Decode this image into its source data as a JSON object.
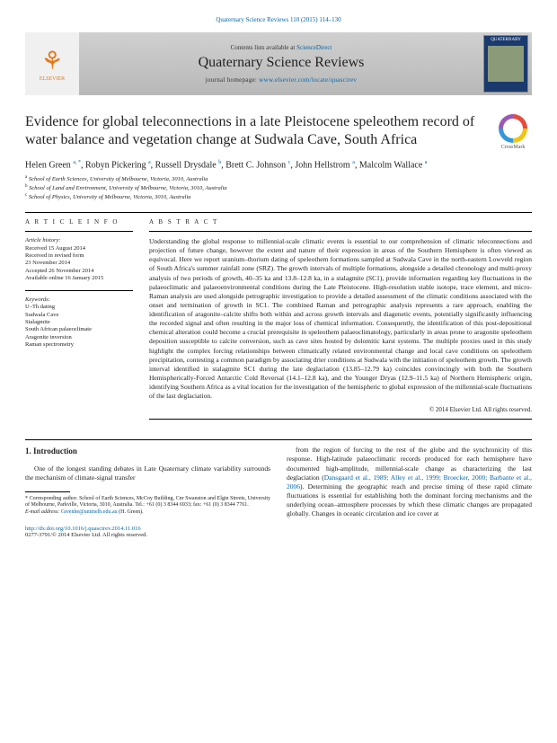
{
  "top_citation": "Quaternary Science Reviews 110 (2015) 114–130",
  "header": {
    "contents_line_prefix": "Contents lists available at ",
    "contents_link": "ScienceDirect",
    "journal_name": "Quaternary Science Reviews",
    "homepage_prefix": "journal homepage: ",
    "homepage_link": "www.elsevier.com/locate/quascirev",
    "publisher_logo": "ELSEVIER",
    "cover_title": "QUATERNARY"
  },
  "article": {
    "title": "Evidence for global teleconnections in a late Pleistocene speleothem record of water balance and vegetation change at Sudwala Cave, South Africa",
    "crossmark_label": "CrossMark"
  },
  "authors_html": "Helen Green <sup>a, *</sup>, Robyn Pickering <sup>a</sup>, Russell Drysdale <sup>b</sup>, Brett C. Johnson <sup>c</sup>, John Hellstrom <sup>a</sup>, Malcolm Wallace <sup>a</sup>",
  "affiliations": [
    "a School of Earth Sciences, University of Melbourne, Victoria, 3010, Australia",
    "b School of Land and Environment, University of Melbourne, Victoria, 3010, Australia",
    "c School of Physics, University of Melbourne, Victoria, 3010, Australia"
  ],
  "article_info": {
    "heading": "A R T I C L E   I N F O",
    "history_label": "Article history:",
    "history": [
      "Received 15 August 2014",
      "Received in revised form",
      "23 November 2014",
      "Accepted 26 November 2014",
      "Available online 16 January 2015"
    ],
    "keywords_label": "Keywords:",
    "keywords": [
      "U–Th dating",
      "Sudwala Cave",
      "Stalagmite",
      "South African palaeoclimate",
      "Aragonite inversion",
      "Raman spectrometry"
    ]
  },
  "abstract": {
    "heading": "A B S T R A C T",
    "text": "Understanding the global response to millennial-scale climatic events is essential to our comprehension of climatic teleconnections and projection of future change, however the extent and nature of their expression in areas of the Southern Hemisphere is often viewed as equivocal. Here we report uranium–thorium dating of speleothem formations sampled at Sudwala Cave in the north-eastern Lowveld region of South Africa's summer rainfall zone (SRZ). The growth intervals of multiple formations, alongside a detailed chronology and multi-proxy analysis of two periods of growth, 40–35 ka and 13.8–12.8 ka, in a stalagmite (SC1), provide information regarding key fluctuations in the palaeoclimatic and palaeoenvironmental conditions during the Late Pleistocene. High-resolution stable isotope, trace element, and micro-Raman analysis are used alongside petrographic investigation to provide a detailed assessment of the climatic conditions associated with the onset and termination of growth in SC1. The combined Raman and petrographic analysis represents a rare approach, enabling the identification of aragonite–calcite shifts both within and across growth intervals and diagenetic events, potentially significantly influencing the recorded signal and often resulting in the major loss of chemical information. Consequently, the identification of this post-depositional chemical alteration could become a crucial prerequisite in speleothem palaeoclimatology, particularly in areas prone to aragonite speleothem deposition susceptible to calcite conversion, such as cave sites hosted by dolomitic karst systems. The multiple proxies used in this study highlight the complex forcing relationships between climatically related environmental change and local cave conditions on speleothem precipitation, contesting a common paradigm by associating drier conditions at Sudwala with the initiation of speleothem growth. The growth interval identified in stalagmite SC1 during the late deglaciation (13.85–12.79 ka) coincides convincingly with both the Southern Hemispherically-Forced Antarctic Cold Reversal (14.1–12.8 ka), and the Younger Dryas (12.9–11.5 ka) of Northern Hemispheric origin, identifying Southern Africa as a vital location for the investigation of the hemispheric to global expression of the millennial-scale fluctuations of the last deglaciation.",
    "copyright": "© 2014 Elsevier Ltd. All rights reserved."
  },
  "intro": {
    "heading": "1. Introduction",
    "col1": "One of the longest standing debates in Late Quaternary climate variability surrounds the mechanism of climate-signal transfer",
    "col2_part1": "from the region of forcing to the rest of the globe and the synchronicity of this response. High-latitude palaeoclimatic records produced for each hemisphere have documented high-amplitude, millennial-scale change as characterizing the last deglaciation (",
    "col2_links": "Dansgaard et al., 1989; Alley et al., 1999; Broecker, 2000; Barbante et al., 2006",
    "col2_part2": "). Determining the geographic reach and precise timing of these rapid climate fluctuations is essential for establishing both the dominant forcing mechanisms and the underlying ocean–atmosphere processes by which these climatic changes are propagated globally. Changes in oceanic circulation and ice cover at"
  },
  "footnote": {
    "corr": "* Corresponding author. School of Earth Sciences, McCoy Building, Cnr Swanston and Elgin Streets, University of Melbourne, Parkville, Victoria, 3010, Australia. Tel.: +61 (0) 3 8344 6933; fax: +61 (0) 3 8344 7761.",
    "email_label": "E-mail address: ",
    "email": "Greenhe@unimelb.edu.au",
    "email_suffix": " (H. Green)."
  },
  "bottom": {
    "doi": "http://dx.doi.org/10.1016/j.quascirev.2014.11.016",
    "issn_line": "0277-3791/© 2014 Elsevier Ltd. All rights reserved."
  },
  "colors": {
    "link": "#0066aa",
    "header_bg_top": "#d0d0d0",
    "header_bg_bottom": "#b8b8b8",
    "elsevier_orange": "#e67817",
    "cover_bg": "#1a3a6e"
  }
}
